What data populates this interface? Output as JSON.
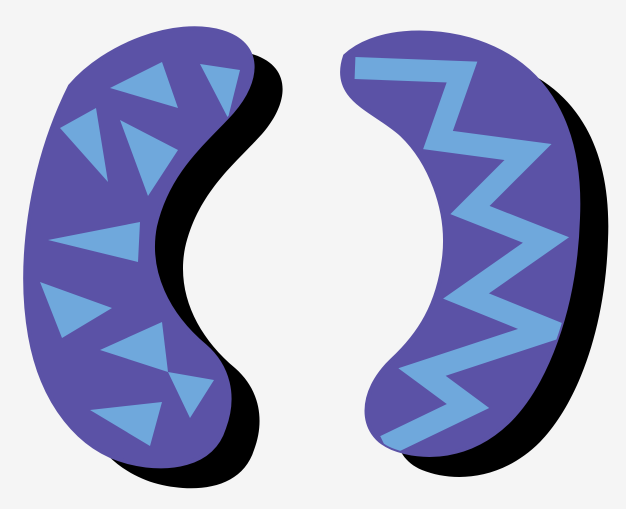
{
  "illustration": {
    "subject": "kidney-shapes-icon",
    "colors": {
      "background": "#f5f5f5",
      "shadow": "#000000",
      "outline": "#5b52a6",
      "fill": "#5f57a8",
      "pattern": "#6fa8dc"
    }
  }
}
